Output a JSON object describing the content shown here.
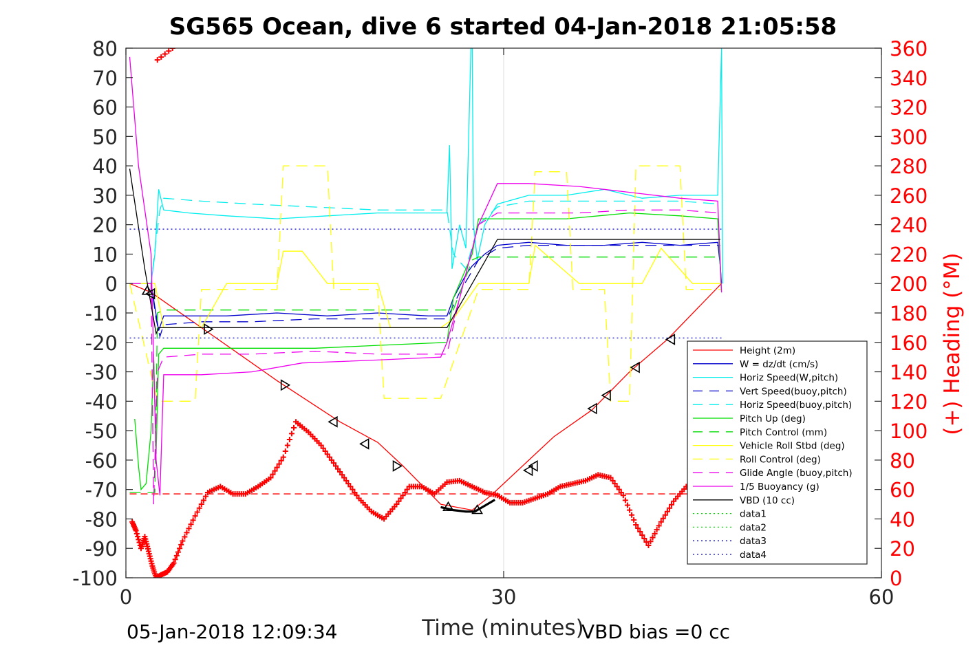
{
  "chart_data": {
    "type": "line",
    "title": "SG565 Ocean, dive 6 started 04-Jan-2018 21:05:58",
    "xlabel": "Time (minutes)",
    "ylabel_right": "(+) Heading (°M)",
    "xlim": [
      0,
      60
    ],
    "ylim": [
      -100,
      80
    ],
    "y2lim": [
      0,
      360
    ],
    "xticks": [
      "0",
      "30",
      "60"
    ],
    "yticks": [
      "80",
      "70",
      "60",
      "50",
      "40",
      "30",
      "20",
      "10",
      "0",
      "-10",
      "-20",
      "-30",
      "-40",
      "-50",
      "-60",
      "-70",
      "-80",
      "-90",
      "-100"
    ],
    "y2ticks": [
      "360",
      "340",
      "320",
      "300",
      "280",
      "260",
      "240",
      "220",
      "200",
      "180",
      "160",
      "140",
      "120",
      "100",
      "80",
      "60",
      "40",
      "20",
      "0"
    ],
    "grid": "x-only",
    "legend_position": "bottom-right",
    "footer_left": "05-Jan-2018 12:09:34",
    "footer_right": "VBD bias =0 cc",
    "colors": {
      "height": "#ff0000",
      "w": "#0000cc",
      "hspeed": "#00eeee",
      "pitch": "#00dd00",
      "roll": "#ffff00",
      "glide": "#ee00ee",
      "vbd": "#000000",
      "heading": "#ff0000"
    },
    "series": [
      {
        "name": "Height (2m)",
        "style": "solid",
        "color": "#ff0000",
        "x": [
          0.3,
          2,
          6,
          12,
          17,
          20,
          22,
          25,
          27.5,
          29,
          31,
          34,
          37,
          40,
          43,
          47.3
        ],
        "y": [
          0,
          -3,
          -15,
          -33,
          -47,
          -54,
          -62,
          -75,
          -77,
          -72,
          -64,
          -52,
          -43,
          -30,
          -19,
          0
        ]
      },
      {
        "name": "W = dz/dt (cm/s)",
        "style": "solid",
        "color": "#0000cc",
        "x": [
          0.3,
          2.0,
          2.3,
          2.6,
          3,
          5,
          8,
          12,
          16,
          20,
          24,
          25.5,
          26,
          27,
          27.5,
          28.5,
          29.5,
          32,
          35,
          38,
          41,
          44,
          47,
          47.2,
          47.3
        ],
        "y": [
          0,
          0,
          -8,
          -16,
          -11,
          -11,
          -11,
          -10,
          -11,
          -10,
          -11,
          -11,
          -5,
          3,
          6,
          10,
          13,
          14,
          13,
          13,
          14,
          13,
          14,
          6,
          0
        ]
      },
      {
        "name": "Horiz Speed(W,pitch)",
        "style": "solid",
        "color": "#00eeee",
        "x": [
          0.3,
          2.0,
          2.3,
          2.6,
          3,
          5,
          8,
          12,
          16,
          20,
          25.5,
          25.7,
          25.9,
          26.5,
          27,
          27.4,
          27.5,
          27.6,
          27.9,
          28.5,
          29.5,
          32,
          35,
          38,
          41,
          44,
          47,
          47.3,
          47.4
        ],
        "y": [
          0,
          0,
          10,
          32,
          25,
          24,
          23,
          22,
          23,
          24,
          24,
          47,
          5,
          20,
          12,
          80,
          80,
          20,
          8,
          20,
          27,
          30,
          30,
          32,
          29,
          30,
          30,
          80,
          0
        ]
      },
      {
        "name": "Vert Speed(buoy,pitch)",
        "style": "dashed",
        "color": "#0000cc",
        "x": [
          0.3,
          2.0,
          2.4,
          2.7,
          3,
          6,
          10,
          15,
          20,
          25.5,
          26.5,
          28,
          29.5,
          32,
          36,
          40,
          44,
          47.2
        ],
        "y": [
          0,
          0,
          -12,
          -18,
          -14,
          -13,
          -13,
          -12,
          -12,
          -12,
          -3,
          8,
          12,
          13,
          13,
          13,
          13,
          13
        ]
      },
      {
        "name": "Horiz Speed(buoy,pitch)",
        "style": "dashed",
        "color": "#00eeee",
        "x": [
          0.3,
          2.0,
          2.4,
          2.7,
          3,
          6,
          10,
          15,
          20,
          25.5,
          26,
          27,
          28,
          29.5,
          32,
          36,
          40,
          44,
          47.2
        ],
        "y": [
          0,
          0,
          15,
          25,
          29,
          28,
          27,
          26,
          25,
          25,
          10,
          5,
          20,
          26,
          28,
          28,
          28,
          28,
          27
        ]
      },
      {
        "name": "Pitch Up (deg)",
        "style": "solid",
        "color": "#00dd00",
        "x": [
          0.7,
          1.0,
          1.2,
          1.6,
          2.0,
          2.2,
          2.4,
          2.6,
          3,
          6,
          10,
          15,
          20,
          25.5,
          26,
          27.5,
          28,
          29.5,
          32,
          35,
          40,
          44,
          47,
          47.3
        ],
        "y": [
          -46,
          -62,
          -70,
          -68,
          -50,
          -24,
          -58,
          -24,
          -22,
          -22,
          -22,
          -22,
          -21,
          -20,
          -5,
          10,
          22,
          22,
          22,
          22,
          24,
          23,
          22,
          -3
        ]
      },
      {
        "name": "Pitch Control (mm)",
        "style": "dashed",
        "color": "#00dd00",
        "x": [
          0.3,
          2.3,
          2.5,
          3,
          26,
          27.5,
          28,
          47.2
        ],
        "y": [
          -71,
          -71,
          -10,
          -9,
          -9,
          8,
          9,
          9
        ]
      },
      {
        "name": "Vehicle Roll Stbd (deg)",
        "style": "solid",
        "color": "#ffff00",
        "x": [
          0.3,
          2.3,
          3,
          5,
          6,
          8,
          12,
          12.5,
          14,
          16,
          20,
          21,
          25,
          26,
          28,
          30,
          32,
          32.5,
          36,
          39,
          41,
          42.5,
          45,
          47.3
        ],
        "y": [
          0,
          0,
          -15,
          -15,
          -15,
          0,
          0,
          11,
          11,
          0,
          0,
          -15,
          -15,
          -12,
          0,
          0,
          0,
          13,
          0,
          0,
          0,
          12,
          0,
          0
        ]
      },
      {
        "name": "Roll Control (deg)",
        "style": "dashed",
        "color": "#ffff00",
        "x": [
          0.3,
          2.5,
          5.5,
          6,
          12,
          12.5,
          16,
          16.5,
          20,
          20.5,
          25,
          28,
          32,
          32.5,
          35,
          35.5,
          38,
          38.5,
          40,
          40.5,
          44,
          44.5,
          47.2
        ],
        "y": [
          0,
          -40,
          -40,
          -2,
          -2,
          40,
          40,
          -2,
          -2,
          -39,
          -39,
          -2,
          -2,
          38,
          38,
          -2,
          -2,
          -40,
          -40,
          40,
          40,
          -2,
          -2
        ]
      },
      {
        "name": "Glide Angle (buoy,pitch)",
        "style": "dashed",
        "color": "#ee00ee",
        "x": [
          0.3,
          2.0,
          2.2,
          2.5,
          3,
          6,
          10,
          15,
          20,
          25.5,
          26.5,
          28,
          29.5,
          32,
          36,
          40,
          44,
          47.2
        ],
        "y": [
          0,
          0,
          -75,
          -30,
          -25,
          -24,
          -24,
          -23,
          -24,
          -24,
          -5,
          20,
          24,
          24,
          24,
          25,
          25,
          24
        ]
      },
      {
        "name": "1/5 Buoyancy (g)",
        "style": "solid",
        "color": "#ee00ee",
        "x": [
          0.3,
          1.0,
          2.0,
          2.4,
          2.7,
          3,
          6,
          10,
          14,
          20,
          25,
          25.5,
          26.5,
          28,
          29.5,
          32,
          36,
          40,
          44,
          47,
          47.3
        ],
        "y": [
          77,
          40,
          10,
          -60,
          -72,
          -31,
          -31,
          -30,
          -27,
          -26,
          -25,
          -20,
          -5,
          20,
          34,
          34,
          33,
          31,
          29,
          28,
          -3
        ]
      },
      {
        "name": "VBD (10 cc)",
        "style": "solid",
        "color": "#000000",
        "x": [
          0.3,
          1.5,
          2.4,
          2.6,
          25.5,
          27.5,
          29.5,
          47.2
        ],
        "y": [
          39,
          5,
          -17,
          -15,
          -15,
          0,
          15,
          15
        ]
      },
      {
        "name": "data1",
        "style": "dotted",
        "color": "#00dd00",
        "x": [],
        "y": []
      },
      {
        "name": "data2",
        "style": "dotted",
        "color": "#00dd00",
        "x": [],
        "y": []
      },
      {
        "name": "data3",
        "style": "dotted",
        "color": "#0000cc",
        "x": [
          0.3,
          47.3
        ],
        "y": [
          -18.5,
          -18.5
        ]
      },
      {
        "name": "data4",
        "style": "dotted",
        "color": "#0000cc",
        "x": [
          0.3,
          47.3
        ],
        "y": [
          18.5,
          18.5
        ]
      }
    ],
    "reference_line": {
      "style": "dashed",
      "color": "#ff0000",
      "y": -71.5,
      "x": [
        0.3,
        47.3
      ]
    },
    "vbd_bottom_curve": {
      "x": [
        25,
        26,
        27,
        27.7,
        28.5,
        29.3
      ],
      "y": [
        -76,
        -77,
        -77.5,
        -77.5,
        -75.5,
        -73.5
      ]
    },
    "heading": {
      "axis": "right",
      "marker": "+",
      "color": "#ff0000",
      "x": [
        0.5,
        0.8,
        1.2,
        1.5,
        1.8,
        2.1,
        2.4,
        2.8,
        3.3,
        3.8,
        4.5,
        5.5,
        6.5,
        7.5,
        8.5,
        9.5,
        10.5,
        11.5,
        12.5,
        13.5,
        14.5,
        15.5,
        16.5,
        17.5,
        18.5,
        19.5,
        20.5,
        21.5,
        22.5,
        23.5,
        24.5,
        25.5,
        26.5,
        27.5,
        28.5,
        29.5,
        30.5,
        31.5,
        32.5,
        33.5,
        34.5,
        35.5,
        36.5,
        37.5,
        38.5,
        39.5,
        40.5,
        41.5,
        42.5,
        43.5,
        44.5,
        45.5,
        46.5,
        47.3
      ],
      "y": [
        38,
        32,
        20,
        28,
        18,
        8,
        0,
        2,
        4,
        10,
        25,
        42,
        58,
        62,
        57,
        57,
        62,
        68,
        82,
        106,
        99,
        90,
        78,
        66,
        54,
        45,
        40,
        50,
        62,
        62,
        57,
        65,
        66,
        62,
        58,
        56,
        51,
        51,
        54,
        57,
        62,
        64,
        66,
        70,
        68,
        56,
        36,
        22,
        38,
        52,
        62,
        64,
        56,
        52
      ]
    },
    "heading_wrap": {
      "x": [
        2.5,
        2.8,
        3.1,
        3.4,
        3.7
      ],
      "y": [
        352,
        354,
        356,
        358,
        360
      ]
    },
    "triangles": [
      {
        "x": 1.7,
        "y": -2.5,
        "dir": "up"
      },
      {
        "x": 2.0,
        "y": -3.5,
        "dir": "left"
      },
      {
        "x": 6.5,
        "y": -15.5,
        "dir": "right"
      },
      {
        "x": 12.6,
        "y": -34.5,
        "dir": "right"
      },
      {
        "x": 16.5,
        "y": -47,
        "dir": "left"
      },
      {
        "x": 19.0,
        "y": -54.5,
        "dir": "left"
      },
      {
        "x": 21.5,
        "y": -62,
        "dir": "right"
      },
      {
        "x": 25.6,
        "y": -76,
        "dir": "up"
      },
      {
        "x": 27.9,
        "y": -77,
        "dir": "up"
      },
      {
        "x": 32.0,
        "y": -63.5,
        "dir": "left"
      },
      {
        "x": 32.4,
        "y": -62,
        "dir": "left"
      },
      {
        "x": 37.1,
        "y": -42.5,
        "dir": "left"
      },
      {
        "x": 38.2,
        "y": -38,
        "dir": "left"
      },
      {
        "x": 40.5,
        "y": -28.5,
        "dir": "left"
      },
      {
        "x": 43.3,
        "y": -19,
        "dir": "left"
      }
    ]
  }
}
